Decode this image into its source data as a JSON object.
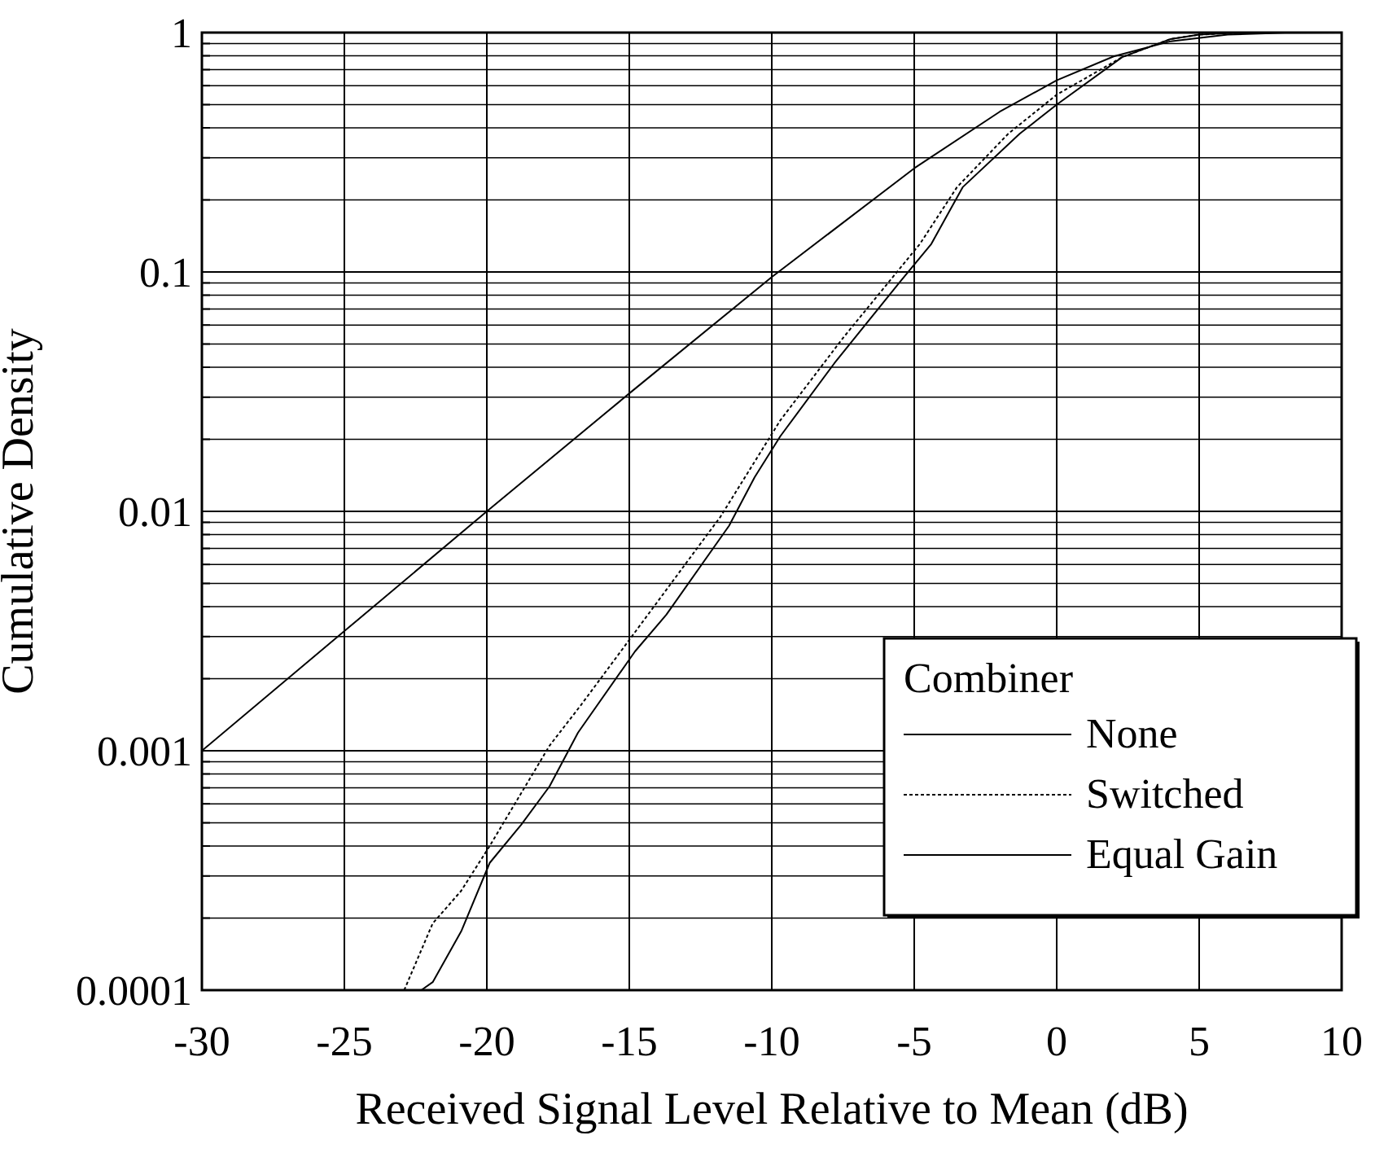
{
  "chart_data": {
    "type": "line",
    "xlabel": "Received Signal Level Relative to Mean (dB)",
    "ylabel": "Cumulative Density",
    "legend_title": "Combiner",
    "legend": "bottom right",
    "log": "y",
    "grid": true,
    "xlim": [
      -30,
      10
    ],
    "xticks": [
      -30,
      -25,
      -20,
      -15,
      -10,
      -5,
      0,
      5,
      10
    ],
    "ylim": [
      0.0001,
      1
    ],
    "yticks": [
      0.0001,
      {
        "value": 0.0002,
        "label": null
      },
      {
        "value": 0.0003,
        "label": null
      },
      {
        "value": 0.0004,
        "label": null
      },
      {
        "value": 0.0005,
        "label": null
      },
      {
        "value": 0.0006,
        "label": null
      },
      {
        "value": 0.0007,
        "label": null
      },
      {
        "value": 0.0008,
        "label": null
      },
      {
        "value": 0.0009,
        "label": null
      },
      0.001,
      {
        "value": 0.002,
        "label": null
      },
      {
        "value": 0.003,
        "label": null
      },
      {
        "value": 0.004,
        "label": null
      },
      {
        "value": 0.005,
        "label": null
      },
      {
        "value": 0.006,
        "label": null
      },
      {
        "value": 0.007,
        "label": null
      },
      {
        "value": 0.008,
        "label": null
      },
      {
        "value": 0.009,
        "label": null
      },
      0.01,
      {
        "value": 0.02,
        "label": null
      },
      {
        "value": 0.03,
        "label": null
      },
      {
        "value": 0.04,
        "label": null
      },
      {
        "value": 0.05,
        "label": null
      },
      {
        "value": 0.06,
        "label": null
      },
      {
        "value": 0.07,
        "label": null
      },
      {
        "value": 0.08,
        "label": null
      },
      {
        "value": 0.09,
        "label": null
      },
      0.1,
      {
        "value": 0.2,
        "label": null
      },
      {
        "value": 0.3,
        "label": null
      },
      {
        "value": 0.4,
        "label": null
      },
      {
        "value": 0.5,
        "label": null
      },
      {
        "value": 0.6,
        "label": null
      },
      {
        "value": 0.7,
        "label": null
      },
      {
        "value": 0.8,
        "label": null
      },
      {
        "value": 0.9,
        "label": null
      },
      1
    ],
    "series": [
      {
        "name": "None",
        "color": "#000000",
        "line_style": "solid",
        "x": [
          -30,
          -25,
          -20,
          -15,
          -10,
          -5,
          -2,
          0,
          2,
          4,
          6,
          8,
          10
        ],
        "values": [
          0.001,
          0.00316,
          0.01,
          0.0311,
          0.0952,
          0.271,
          0.467,
          0.632,
          0.795,
          0.92,
          0.981,
          0.998,
          1
        ]
      },
      {
        "name": "Switched",
        "color": "#000000",
        "line_style": "dotted",
        "x": [
          -22.9,
          -21.9,
          -20.9,
          -19.9,
          -17.8,
          -16.7,
          -15.3,
          -11.8,
          -9.7,
          -7.5,
          -4.8,
          -3.5,
          -1.7,
          0,
          2.3,
          4,
          5,
          6,
          7,
          10
        ],
        "values": [
          0.0001,
          0.00019,
          0.00026,
          0.0004,
          0.00105,
          0.00155,
          0.0026,
          0.0095,
          0.024,
          0.053,
          0.131,
          0.226,
          0.378,
          0.55,
          0.79,
          0.94,
          0.98,
          0.995,
          1,
          1
        ]
      },
      {
        "name": "Equal Gain",
        "color": "#000000",
        "line_style": "solid",
        "x": [
          -22.3,
          -21.9,
          -20.9,
          -19.9,
          -18.8,
          -17.8,
          -16.8,
          -14.8,
          -13.7,
          -11.5,
          -10.6,
          -9.7,
          -7.8,
          -5.5,
          -4.4,
          -3.3,
          -1.3,
          0,
          2.3,
          4,
          5,
          6,
          7,
          10
        ],
        "values": [
          0.0001,
          0.000108,
          0.000176,
          0.00034,
          0.00049,
          0.00071,
          0.00119,
          0.0026,
          0.0037,
          0.0087,
          0.0139,
          0.0206,
          0.0416,
          0.091,
          0.131,
          0.226,
          0.378,
          0.5,
          0.79,
          0.94,
          0.98,
          0.995,
          1,
          1
        ]
      }
    ]
  }
}
